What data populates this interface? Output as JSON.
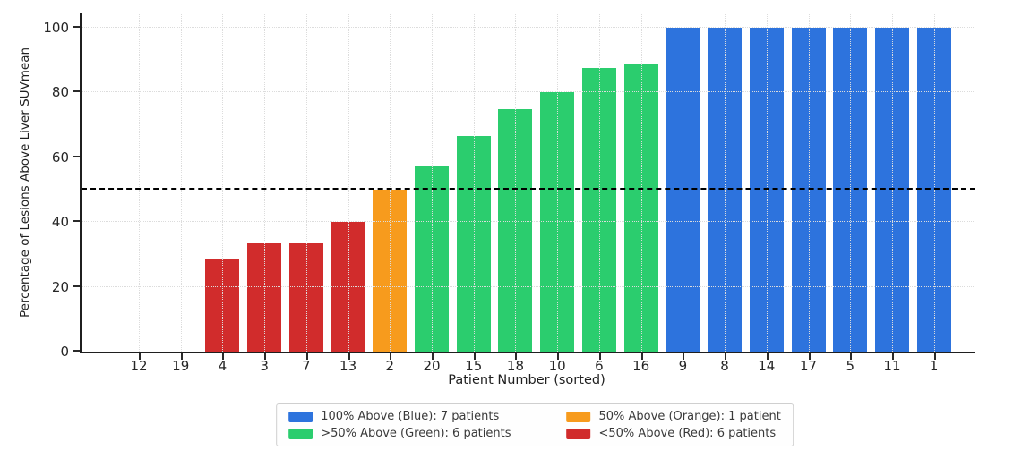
{
  "chart_data": {
    "type": "bar",
    "title": "",
    "xlabel": "Patient Number (sorted)",
    "ylabel": "Percentage of Lesions Above Liver SUVmean",
    "ylim": [
      0,
      104.7
    ],
    "yticks": [
      0,
      20,
      40,
      60,
      80,
      100
    ],
    "grid": true,
    "categories": [
      "12",
      "19",
      "4",
      "3",
      "7",
      "13",
      "2",
      "20",
      "15",
      "18",
      "10",
      "6",
      "16",
      "9",
      "8",
      "14",
      "17",
      "5",
      "11",
      "1"
    ],
    "values": [
      0,
      0,
      28.6,
      33.3,
      33.3,
      40,
      50,
      57.1,
      66.7,
      75,
      80,
      87.5,
      88.9,
      100,
      100,
      100,
      100,
      100,
      100,
      100
    ],
    "bar_colors": [
      "red",
      "red",
      "red",
      "red",
      "red",
      "red",
      "orange",
      "green",
      "green",
      "green",
      "green",
      "green",
      "green",
      "blue",
      "blue",
      "blue",
      "blue",
      "blue",
      "blue",
      "blue"
    ],
    "reference_line": {
      "y": 50,
      "style": "dashed",
      "color": "#000000"
    },
    "legend_position": "bottom-center"
  },
  "colors": {
    "blue": "#2d73dd",
    "green": "#2bcd6e",
    "orange": "#f79b1d",
    "red": "#d12c2c",
    "grid": "#dcdcdc",
    "spine": "#1f1f1f",
    "reference": "#000000"
  },
  "legend": {
    "entries": [
      {
        "label": "100% Above (Blue): 7 patients",
        "color": "blue"
      },
      {
        "label": ">50% Above (Green): 6 patients",
        "color": "green"
      },
      {
        "label": "50% Above (Orange): 1 patient",
        "color": "orange"
      },
      {
        "label": "<50% Above (Red): 6 patients",
        "color": "red"
      }
    ]
  }
}
